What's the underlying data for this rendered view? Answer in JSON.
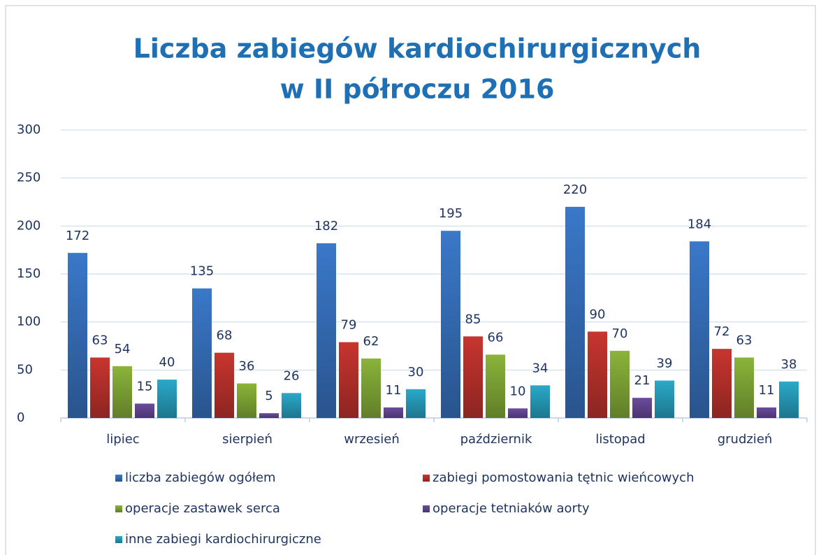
{
  "chart_data": {
    "type": "bar",
    "title": [
      "Liczba zabiegów kardiochirurgicznych",
      "w II półroczu 2016"
    ],
    "categories": [
      "lipiec",
      "sierpień",
      "wrzesień",
      "październik",
      "listopad",
      "grudzień"
    ],
    "series": [
      {
        "name": "liczba zabiegów ogółem",
        "color": "#3a78c9",
        "values": [
          172,
          135,
          182,
          195,
          220,
          184
        ]
      },
      {
        "name": "zabiegi pomostowania tętnic wieńcowych",
        "color": "#c8352f",
        "values": [
          63,
          68,
          79,
          85,
          90,
          72
        ]
      },
      {
        "name": "operacje zastawek serca",
        "color": "#8ab43a",
        "values": [
          54,
          36,
          62,
          66,
          70,
          63
        ]
      },
      {
        "name": "operacje tetniaków aorty",
        "color": "#6b4b9e",
        "values": [
          15,
          5,
          11,
          10,
          21,
          11
        ]
      },
      {
        "name": "inne zabiegi kardiochirurgiczne",
        "color": "#2aa9c9",
        "values": [
          40,
          26,
          30,
          34,
          39,
          38
        ]
      }
    ],
    "ylim": [
      0,
      300
    ],
    "yticks": [
      0,
      50,
      100,
      150,
      200,
      250,
      300
    ],
    "grid": true,
    "legend": "bottom"
  }
}
